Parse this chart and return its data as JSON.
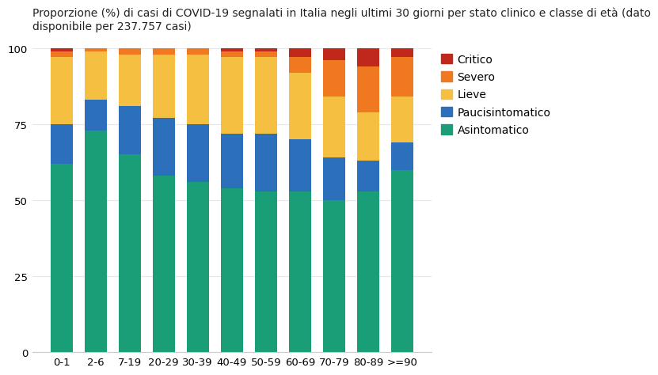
{
  "categories": [
    "0-1",
    "2-6",
    "7-19",
    "20-29",
    "30-39",
    "40-49",
    "50-59",
    "60-69",
    "70-79",
    "80-89",
    ">=90"
  ],
  "asintomatico": [
    62,
    73,
    65,
    58,
    56,
    54,
    53,
    53,
    50,
    53,
    60
  ],
  "paucisintomatico": [
    13,
    10,
    16,
    19,
    19,
    18,
    19,
    17,
    14,
    10,
    9
  ],
  "lieve": [
    22,
    16,
    17,
    21,
    23,
    25,
    25,
    22,
    20,
    16,
    15
  ],
  "severo": [
    2,
    1,
    2,
    2,
    2,
    2,
    2,
    5,
    12,
    15,
    13
  ],
  "critico": [
    1,
    0,
    0,
    0,
    0,
    1,
    1,
    3,
    4,
    6,
    3
  ],
  "colors": {
    "asintomatico": "#1a9e78",
    "paucisintomatico": "#2c6fba",
    "lieve": "#f5c042",
    "severo": "#f07820",
    "critico": "#c0281c"
  },
  "title_line1": "Proporzione (%) di casi di COVID-19 segnalati in Italia negli ultimi 30 giorni per stato clinico e classe di età (dato",
  "title_line2": "disponibile per 237.757 casi)",
  "ylim": [
    0,
    100
  ],
  "yticks": [
    0,
    25,
    50,
    75,
    100
  ],
  "background_color": "#ffffff",
  "grid_color": "#e8e8e8",
  "title_fontsize": 10,
  "tick_fontsize": 9.5,
  "legend_fontsize": 10,
  "bar_width": 0.65
}
